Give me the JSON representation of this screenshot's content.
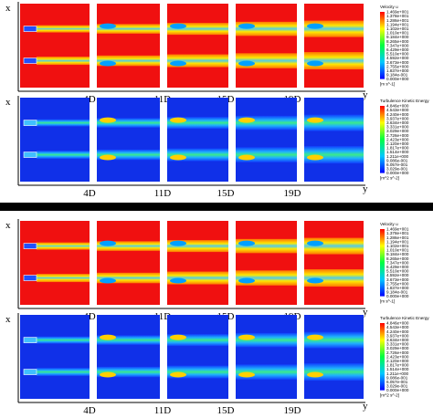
{
  "panels": [
    {
      "x_label": "x",
      "y_label": "y",
      "ticks": [
        "4D",
        "11D",
        "15D",
        "19D"
      ],
      "legend": {
        "title": "Velocity u",
        "unit": "[m s^-1]",
        "levels": [
          "1.469e+001",
          "1.378e+001",
          "1.286e+001",
          "1.194e+001",
          "1.102e+001",
          "1.010e+001",
          "9.184e+000",
          "8.265e+000",
          "7.347e+000",
          "6.429e+000",
          "5.510e+000",
          "4.592e+000",
          "3.673e+000",
          "2.755e+000",
          "1.837e+000",
          "9.184e-001",
          "0.000e+000"
        ]
      }
    },
    {
      "x_label": "x",
      "y_label": "y",
      "ticks": [
        "4D",
        "11D",
        "15D",
        "19D"
      ],
      "legend": {
        "title": "Turbulence Kinetic Energy",
        "unit": "[m^2 s^-2]",
        "levels": [
          "4.846e+000",
          "4.543e+000",
          "4.240e+000",
          "3.937e+000",
          "3.634e+000",
          "3.331e+000",
          "3.029e+000",
          "2.726e+000",
          "2.423e+000",
          "2.120e+000",
          "1.817e+000",
          "1.514e+000",
          "1.211e+000",
          "9.086e-001",
          "6.057e-001",
          "3.029e-001",
          "0.000e+000"
        ]
      }
    },
    {
      "x_label": "x",
      "y_label": "y",
      "ticks": [
        "4D",
        "11D",
        "15D",
        "19D"
      ],
      "legend": {
        "title": "Velocity u",
        "unit": "[m s^-1]",
        "levels": [
          "1.469e+001",
          "1.378e+001",
          "1.286e+001",
          "1.194e+001",
          "1.102e+001",
          "1.010e+001",
          "9.184e+000",
          "8.265e+000",
          "7.347e+000",
          "6.429e+000",
          "5.510e+000",
          "4.592e+000",
          "3.673e+000",
          "2.755e+000",
          "1.837e+000",
          "9.184e-001",
          "0.000e+000"
        ]
      }
    },
    {
      "x_label": "x",
      "y_label": "y",
      "ticks": [
        "4D",
        "11D",
        "15D",
        "19D"
      ],
      "legend": {
        "title": "Turbulence Kinetic Energy",
        "unit": "[m^2 s^-2]",
        "levels": [
          "4.846e+000",
          "4.543e+000",
          "4.240e+000",
          "3.937e+000",
          "3.634e+000",
          "3.331e+000",
          "3.029e+000",
          "2.726e+000",
          "2.423e+000",
          "2.120e+000",
          "1.817e+000",
          "1.514e+000",
          "1.211e+000",
          "9.086e-001",
          "6.057e-001",
          "3.029e-001",
          "0.000e+000"
        ]
      }
    }
  ]
}
